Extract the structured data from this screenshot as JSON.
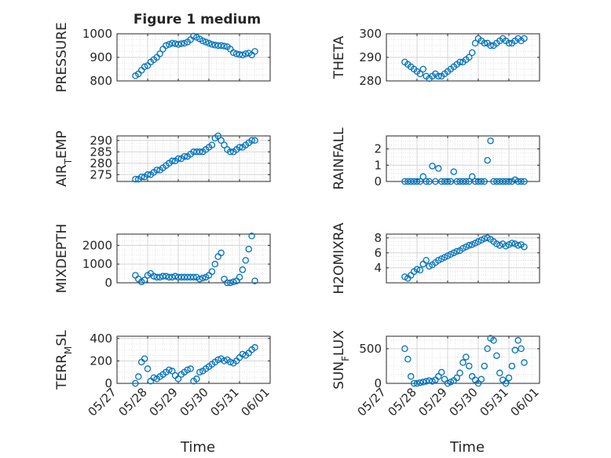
{
  "figure": {
    "title": "Figure 1 medium",
    "xlabel": "Time",
    "xticks": [
      "05/27",
      "05/28",
      "05/29",
      "05/30",
      "05/31",
      "06/01"
    ],
    "marker_color": "#0072BD"
  },
  "chart_data": [
    {
      "type": "scatter",
      "ylabel": "PRESSURE",
      "ylim": [
        800,
        1000
      ],
      "yticks": [
        "800",
        "900",
        "1000"
      ],
      "xlim": [
        "05/27",
        "06/01"
      ],
      "x": [
        0.6,
        0.7,
        0.8,
        0.9,
        1.0,
        1.1,
        1.2,
        1.3,
        1.4,
        1.5,
        1.6,
        1.7,
        1.8,
        1.9,
        2.0,
        2.1,
        2.2,
        2.3,
        2.4,
        2.5,
        2.6,
        2.7,
        2.8,
        2.9,
        3.0,
        3.1,
        3.2,
        3.3,
        3.4,
        3.5,
        3.6,
        3.7,
        3.8,
        3.9,
        4.0,
        4.1,
        4.2,
        4.3,
        4.4,
        4.5
      ],
      "y": [
        822,
        830,
        845,
        860,
        865,
        880,
        890,
        900,
        915,
        935,
        950,
        955,
        960,
        958,
        955,
        958,
        960,
        965,
        975,
        990,
        985,
        978,
        970,
        965,
        960,
        955,
        952,
        950,
        950,
        948,
        945,
        935,
        920,
        915,
        912,
        910,
        915,
        918,
        910,
        925
      ]
    },
    {
      "type": "scatter",
      "ylabel": "THETA",
      "ylim": [
        280,
        300
      ],
      "yticks": [
        "280",
        "290",
        "300"
      ],
      "xlim": [
        "05/27",
        "06/01"
      ],
      "x": [
        0.6,
        0.7,
        0.8,
        0.9,
        1.0,
        1.1,
        1.2,
        1.3,
        1.4,
        1.5,
        1.6,
        1.7,
        1.8,
        1.9,
        2.0,
        2.1,
        2.2,
        2.3,
        2.4,
        2.5,
        2.6,
        2.7,
        2.8,
        2.9,
        3.0,
        3.1,
        3.2,
        3.3,
        3.4,
        3.5,
        3.6,
        3.7,
        3.8,
        3.9,
        4.0,
        4.1,
        4.2,
        4.3,
        4.4,
        4.5
      ],
      "y": [
        288,
        287,
        286,
        285,
        284,
        283,
        285,
        282,
        281,
        282,
        283,
        282,
        282,
        283,
        284,
        285,
        286,
        287,
        288,
        288,
        289,
        290,
        292,
        296,
        298,
        297,
        296,
        296,
        295,
        295,
        296,
        297,
        298,
        297,
        296,
        296,
        297,
        298,
        297,
        298
      ]
    },
    {
      "type": "scatter",
      "ylabel": "AIR_TEMP",
      "ylim": [
        272,
        292
      ],
      "yticks": [
        "275",
        "280",
        "285",
        "290"
      ],
      "xlim": [
        "05/27",
        "06/01"
      ],
      "x": [
        0.6,
        0.7,
        0.8,
        0.9,
        1.0,
        1.1,
        1.2,
        1.3,
        1.4,
        1.5,
        1.6,
        1.7,
        1.8,
        1.9,
        2.0,
        2.1,
        2.2,
        2.3,
        2.4,
        2.5,
        2.6,
        2.7,
        2.8,
        2.9,
        3.0,
        3.1,
        3.2,
        3.3,
        3.4,
        3.5,
        3.6,
        3.7,
        3.8,
        3.9,
        4.0,
        4.1,
        4.2,
        4.3,
        4.4,
        4.5
      ],
      "y": [
        273,
        273,
        274,
        274,
        275,
        275,
        276,
        277,
        277,
        278,
        279,
        280,
        281,
        281,
        282,
        282,
        283,
        283,
        284,
        285,
        285,
        285,
        285,
        286,
        287,
        288,
        291,
        292,
        290,
        288,
        286,
        285,
        285,
        286,
        287,
        287,
        288,
        289,
        290,
        290
      ]
    },
    {
      "type": "scatter",
      "ylabel": "RAINFALL",
      "ylim": [
        0,
        2.8
      ],
      "yticks": [
        "0",
        "1",
        "2"
      ],
      "xlim": [
        "05/27",
        "06/01"
      ],
      "x": [
        0.6,
        0.7,
        0.8,
        0.9,
        1.0,
        1.1,
        1.2,
        1.3,
        1.4,
        1.5,
        1.6,
        1.7,
        1.8,
        1.9,
        2.0,
        2.1,
        2.2,
        2.3,
        2.4,
        2.5,
        2.6,
        2.7,
        2.8,
        2.9,
        3.0,
        3.1,
        3.2,
        3.3,
        3.4,
        3.5,
        3.6,
        3.7,
        3.8,
        3.9,
        4.0,
        4.1,
        4.2,
        4.3,
        4.4,
        4.5
      ],
      "y": [
        0,
        0,
        0,
        0,
        0,
        0,
        0.3,
        0,
        0,
        0.95,
        0,
        0.8,
        0,
        0,
        0,
        0,
        0.6,
        0,
        0,
        0,
        0,
        0,
        0.3,
        0,
        0,
        0,
        0,
        1.3,
        2.5,
        0,
        0,
        0,
        0,
        0,
        0,
        0,
        0.1,
        0,
        0,
        0
      ]
    },
    {
      "type": "scatter",
      "ylabel": "MIXDEPTH",
      "ylim": [
        0,
        2600
      ],
      "yticks": [
        "0",
        "1000",
        "2000"
      ],
      "xlim": [
        "05/27",
        "06/01"
      ],
      "x": [
        0.6,
        0.7,
        0.8,
        0.9,
        1.0,
        1.1,
        1.2,
        1.3,
        1.4,
        1.5,
        1.6,
        1.7,
        1.8,
        1.9,
        2.0,
        2.1,
        2.2,
        2.3,
        2.4,
        2.5,
        2.6,
        2.7,
        2.8,
        2.9,
        3.0,
        3.1,
        3.2,
        3.3,
        3.4,
        3.5,
        3.6,
        3.7,
        3.8,
        3.9,
        4.0,
        4.1,
        4.2,
        4.3,
        4.4,
        4.5
      ],
      "y": [
        400,
        200,
        50,
        150,
        400,
        500,
        350,
        300,
        300,
        350,
        350,
        300,
        300,
        350,
        300,
        300,
        300,
        300,
        300,
        300,
        300,
        200,
        250,
        300,
        400,
        600,
        1000,
        1400,
        1600,
        200,
        0,
        0,
        50,
        100,
        300,
        700,
        1200,
        1800,
        2500,
        100
      ]
    },
    {
      "type": "scatter",
      "ylabel": "H2OMIXRA",
      "ylim": [
        2,
        8.5
      ],
      "yticks": [
        "4",
        "6",
        "8"
      ],
      "xlim": [
        "05/27",
        "06/01"
      ],
      "x": [
        0.6,
        0.7,
        0.8,
        0.9,
        1.0,
        1.1,
        1.2,
        1.3,
        1.4,
        1.5,
        1.6,
        1.7,
        1.8,
        1.9,
        2.0,
        2.1,
        2.2,
        2.3,
        2.4,
        2.5,
        2.6,
        2.7,
        2.8,
        2.9,
        3.0,
        3.1,
        3.2,
        3.3,
        3.4,
        3.5,
        3.6,
        3.7,
        3.8,
        3.9,
        4.0,
        4.1,
        4.2,
        4.3,
        4.4,
        4.5
      ],
      "y": [
        2.8,
        2.6,
        3.0,
        3.5,
        3.8,
        3.7,
        4.5,
        5.0,
        4.2,
        4.4,
        4.7,
        5.0,
        5.2,
        5.4,
        5.6,
        5.8,
        6.0,
        6.2,
        6.3,
        6.6,
        6.8,
        7.0,
        7.1,
        7.3,
        7.5,
        7.7,
        7.9,
        8.0,
        7.8,
        7.5,
        7.2,
        7.0,
        7.2,
        6.9,
        7.1,
        7.3,
        7.2,
        7.0,
        7.1,
        6.8
      ]
    },
    {
      "type": "scatter",
      "ylabel": "TERR_MSL",
      "ylim": [
        0,
        420
      ],
      "yticks": [
        "0",
        "200",
        "400"
      ],
      "xlim": [
        "05/27",
        "06/01"
      ],
      "x": [
        0.6,
        0.7,
        0.8,
        0.9,
        1.0,
        1.1,
        1.2,
        1.3,
        1.4,
        1.5,
        1.6,
        1.7,
        1.8,
        1.9,
        2.0,
        2.1,
        2.2,
        2.3,
        2.4,
        2.5,
        2.6,
        2.7,
        2.8,
        2.9,
        3.0,
        3.1,
        3.2,
        3.3,
        3.4,
        3.5,
        3.6,
        3.7,
        3.8,
        3.9,
        4.0,
        4.1,
        4.2,
        4.3,
        4.4,
        4.5
      ],
      "y": [
        0,
        60,
        190,
        220,
        130,
        20,
        50,
        40,
        60,
        80,
        100,
        120,
        110,
        70,
        40,
        80,
        100,
        120,
        130,
        20,
        40,
        100,
        110,
        130,
        150,
        170,
        190,
        210,
        220,
        200,
        210,
        190,
        180,
        200,
        230,
        260,
        250,
        270,
        300,
        320
      ]
    },
    {
      "type": "scatter",
      "ylabel": "SUN_FLUX",
      "ylim": [
        0,
        680
      ],
      "yticks": [
        "0",
        "500"
      ],
      "xlim": [
        "05/27",
        "06/01"
      ],
      "x": [
        0.6,
        0.7,
        0.8,
        0.9,
        1.0,
        1.1,
        1.2,
        1.3,
        1.4,
        1.5,
        1.6,
        1.7,
        1.8,
        1.9,
        2.0,
        2.1,
        2.2,
        2.3,
        2.4,
        2.5,
        2.6,
        2.7,
        2.8,
        2.9,
        3.0,
        3.1,
        3.2,
        3.3,
        3.4,
        3.5,
        3.6,
        3.7,
        3.8,
        3.9,
        4.0,
        4.1,
        4.2,
        4.3,
        4.4,
        4.5
      ],
      "y": [
        500,
        350,
        100,
        0,
        0,
        10,
        20,
        30,
        40,
        30,
        50,
        100,
        160,
        60,
        0,
        20,
        40,
        80,
        150,
        300,
        380,
        250,
        100,
        50,
        0,
        60,
        250,
        500,
        650,
        620,
        400,
        150,
        50,
        0,
        80,
        250,
        480,
        620,
        500,
        300
      ]
    }
  ]
}
